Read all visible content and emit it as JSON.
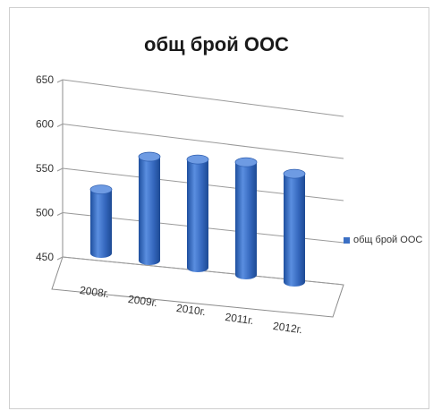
{
  "chart_data": {
    "type": "bar",
    "style": "3d-cylinder",
    "title": "общ брой ООС",
    "categories": [
      "2008г.",
      "2009г.",
      "2010г.",
      "2011г.",
      "2012г."
    ],
    "series": [
      {
        "name": "общ брой ООС",
        "values": [
          510,
          555,
          560,
          565,
          560
        ],
        "color": "#3b6fc4"
      }
    ],
    "ylim": [
      450,
      650
    ],
    "yticks": [
      450,
      500,
      550,
      600,
      650
    ],
    "grid": true,
    "legend": "right"
  }
}
